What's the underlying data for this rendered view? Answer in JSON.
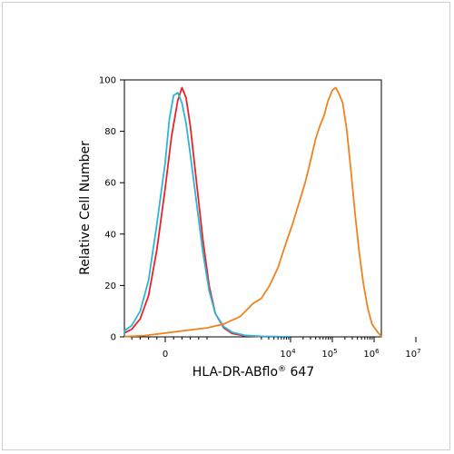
{
  "chart_data": {
    "type": "line",
    "title": "",
    "xlabel": "HLA-DR-ABflo",
    "xlabel_sup": "®",
    "xlabel_suffix": " 647",
    "ylabel": "Relative Cell Number",
    "x_scale": "biexponential",
    "ylim": [
      0,
      100
    ],
    "y_ticks": [
      "0",
      "20",
      "40",
      "60",
      "80",
      "100"
    ],
    "x_ticks": [
      {
        "base": "0",
        "exp": ""
      },
      {
        "base": "10",
        "exp": "4"
      },
      {
        "base": "10",
        "exp": "5"
      },
      {
        "base": "10",
        "exp": "6"
      },
      {
        "base": "10",
        "exp": "7"
      }
    ],
    "grid": false,
    "legend": "none",
    "series": [
      {
        "color": "#e8232a",
        "points": [
          [
            -1.5,
            0.4
          ],
          [
            -1.2,
            0.8
          ],
          [
            -1.0,
            1.5
          ],
          [
            -0.8,
            3
          ],
          [
            -0.6,
            7
          ],
          [
            -0.4,
            16
          ],
          [
            -0.2,
            34
          ],
          [
            0.0,
            58
          ],
          [
            0.15,
            78
          ],
          [
            0.3,
            92
          ],
          [
            0.4,
            97
          ],
          [
            0.5,
            93
          ],
          [
            0.6,
            82
          ],
          [
            0.75,
            60
          ],
          [
            0.9,
            38
          ],
          [
            1.05,
            20
          ],
          [
            1.2,
            9
          ],
          [
            1.4,
            3.5
          ],
          [
            1.6,
            1.3
          ],
          [
            1.9,
            0.4
          ],
          [
            2.3,
            0.1
          ],
          [
            3.0,
            0
          ]
        ]
      },
      {
        "color": "#2bb6d8",
        "points": [
          [
            -1.5,
            0.6
          ],
          [
            -1.2,
            1.2
          ],
          [
            -1.0,
            2.3
          ],
          [
            -0.8,
            4.5
          ],
          [
            -0.6,
            10
          ],
          [
            -0.4,
            22
          ],
          [
            -0.2,
            44
          ],
          [
            0.0,
            68
          ],
          [
            0.1,
            85
          ],
          [
            0.2,
            94
          ],
          [
            0.3,
            95
          ],
          [
            0.4,
            91
          ],
          [
            0.5,
            83
          ],
          [
            0.6,
            71
          ],
          [
            0.75,
            52
          ],
          [
            0.9,
            33
          ],
          [
            1.05,
            18
          ],
          [
            1.2,
            9
          ],
          [
            1.4,
            4
          ],
          [
            1.6,
            1.8
          ],
          [
            1.9,
            0.6
          ],
          [
            2.3,
            0.2
          ],
          [
            3.0,
            0
          ]
        ]
      },
      {
        "color": "#f0831e",
        "points": [
          [
            -1.6,
            0.1
          ],
          [
            -0.5,
            0.5
          ],
          [
            0.0,
            1.5
          ],
          [
            0.5,
            2.5
          ],
          [
            1.0,
            3.5
          ],
          [
            1.4,
            5
          ],
          [
            1.8,
            8
          ],
          [
            2.1,
            13
          ],
          [
            2.3,
            15
          ],
          [
            2.5,
            20
          ],
          [
            2.7,
            27
          ],
          [
            2.9,
            37
          ],
          [
            3.05,
            44
          ],
          [
            3.2,
            52
          ],
          [
            3.35,
            60
          ],
          [
            3.5,
            70
          ],
          [
            3.6,
            77
          ],
          [
            3.7,
            82
          ],
          [
            3.8,
            86
          ],
          [
            3.9,
            92
          ],
          [
            4.0,
            96
          ],
          [
            4.08,
            97
          ],
          [
            4.15,
            95
          ],
          [
            4.25,
            91
          ],
          [
            4.35,
            80
          ],
          [
            4.45,
            64
          ],
          [
            4.55,
            47
          ],
          [
            4.65,
            32
          ],
          [
            4.75,
            20
          ],
          [
            4.85,
            11
          ],
          [
            4.95,
            5
          ],
          [
            5.1,
            1.5
          ],
          [
            5.3,
            0.3
          ],
          [
            5.6,
            0
          ]
        ]
      }
    ]
  }
}
